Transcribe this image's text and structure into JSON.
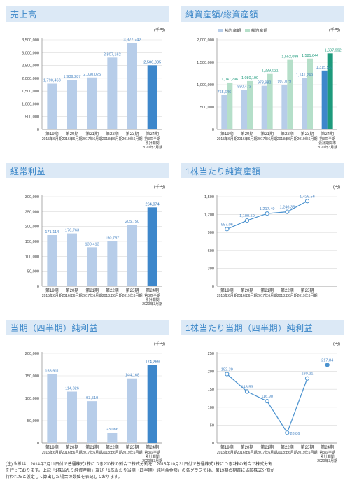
{
  "colors": {
    "bar": "#b7cde9",
    "bar_highlight": "#3d87cb",
    "bar_green": "#b5dfc9",
    "bar_green_highlight": "#1e9a7c",
    "line": "#4b92cf",
    "header_bg": "#dce9f6",
    "title": "#3a86c8"
  },
  "charts": [
    {
      "id": "sales",
      "chart_data": {
        "type": "bar",
        "title": "売上高",
        "unit": "(千円)",
        "categories": [
          [
            "第19期",
            "2015年6月期"
          ],
          [
            "第20期",
            "2016年6月期"
          ],
          [
            "第21期",
            "2017年6月期"
          ],
          [
            "第22期",
            "2018年6月期"
          ],
          [
            "第23期",
            "2019年6月期"
          ],
          [
            "第24期",
            "第3四半期",
            "累計期間",
            "2020年3月期"
          ]
        ],
        "values": [
          1790463,
          1939287,
          2030025,
          2807162,
          3377742,
          2506335
        ],
        "value_labels": [
          "1,790,463",
          "1,939,287",
          "2,030,025",
          "2,807,162",
          "3,377,742",
          "2,506,335"
        ],
        "highlight_last": true,
        "yticks": [
          0,
          500000,
          1000000,
          1500000,
          2000000,
          2500000,
          3000000,
          3500000
        ],
        "ytick_labels": [
          "0",
          "500,000",
          "1,000,000",
          "1,500,000",
          "2,000,000",
          "2,500,000",
          "3,000,000",
          "3,500,000"
        ],
        "ylim": [
          0,
          3500000
        ]
      }
    },
    {
      "id": "assets",
      "chart_data": {
        "type": "bar",
        "title": "純資産額/総資産額",
        "unit": "(千円)",
        "categories": [
          [
            "第19期",
            "2015年6月期"
          ],
          [
            "第20期",
            "2016年6月期"
          ],
          [
            "第21期",
            "2017年6月期"
          ],
          [
            "第22期",
            "2018年6月期"
          ],
          [
            "第23期",
            "2019年6月期"
          ],
          [
            "第24期",
            "第3四半期",
            "会計期間末",
            "2020年3月期"
          ]
        ],
        "series": [
          {
            "name": "純資産額",
            "values": [
              765646,
              880473,
              973982,
              997079,
              1141249,
              1315537
            ],
            "value_labels": [
              "765,646",
              "880,473",
              "973,982",
              "997,079",
              "1,141,249",
              "1,315,537"
            ]
          },
          {
            "name": "総資産額",
            "values": [
              1047796,
              1080190,
              1239021,
              1552099,
              1581644,
              1697992
            ],
            "value_labels": [
              "1,047,796",
              "1,080,190",
              "1,239,021",
              "1,552,099",
              "1,581,644",
              "1,697,992"
            ]
          }
        ],
        "legend": "top-left",
        "highlight_last": true,
        "yticks": [
          0,
          500000,
          1000000,
          1500000,
          2000000
        ],
        "ytick_labels": [
          "0",
          "500,000",
          "1,000,000",
          "1,500,000",
          "2,000,000"
        ],
        "ylim": [
          0,
          2000000
        ]
      }
    },
    {
      "id": "ordinary",
      "chart_data": {
        "type": "bar",
        "title": "経常利益",
        "unit": "(千円)",
        "categories": [
          [
            "第19期",
            "2015年6月期"
          ],
          [
            "第20期",
            "2016年6月期"
          ],
          [
            "第21期",
            "2017年6月期"
          ],
          [
            "第22期",
            "2018年6月期"
          ],
          [
            "第23期",
            "2019年6月期"
          ],
          [
            "第24期",
            "第3四半期",
            "累計期間",
            "2020年3月期"
          ]
        ],
        "values": [
          171114,
          176763,
          130413,
          150757,
          205750,
          264074
        ],
        "value_labels": [
          "171,114",
          "176,763",
          "130,413",
          "150,757",
          "205,750",
          "264,074"
        ],
        "highlight_last": true,
        "yticks": [
          0,
          50000,
          100000,
          150000,
          200000,
          250000,
          300000
        ],
        "ytick_labels": [
          "0",
          "50,000",
          "100,000",
          "150,000",
          "200,000",
          "250,000",
          "300,000"
        ],
        "ylim": [
          0,
          300000
        ]
      }
    },
    {
      "id": "bps",
      "chart_data": {
        "type": "line",
        "title": "1株当たり純資産額",
        "unit": "(円)",
        "categories": [
          [
            "第19期",
            "2015年6月期"
          ],
          [
            "第20期",
            "2016年6月期"
          ],
          [
            "第21期",
            "2017年6月期"
          ],
          [
            "第22期",
            "2018年6月期"
          ],
          [
            "第23期",
            "2019年6月期"
          ]
        ],
        "values": [
          957.06,
          1100.59,
          1217.49,
          1246.35,
          1426.56
        ],
        "value_labels": [
          "957.06",
          "1,100.59",
          "1,217.49",
          "1,246.35",
          "1,426.56"
        ],
        "yticks": [
          0,
          300,
          600,
          900,
          1200,
          1500
        ],
        "ytick_labels": [
          "0",
          "300",
          "600",
          "900",
          "1,200",
          "1,500"
        ],
        "ylim": [
          0,
          1500
        ]
      }
    },
    {
      "id": "net",
      "chart_data": {
        "type": "bar",
        "title": "当期（四半期）純利益",
        "unit": "(千円)",
        "categories": [
          [
            "第19期",
            "2015年6月期"
          ],
          [
            "第20期",
            "2016年6月期"
          ],
          [
            "第21期",
            "2017年6月期"
          ],
          [
            "第22期",
            "2018年6月期"
          ],
          [
            "第23期",
            "2019年6月期"
          ],
          [
            "第24期",
            "第3四半期",
            "累計期間",
            "2020年3月期"
          ]
        ],
        "values": [
          153911,
          114826,
          93519,
          23086,
          144168,
          174269
        ],
        "value_labels": [
          "153,911",
          "114,826",
          "93,519",
          "23,086",
          "144,168",
          "174,269"
        ],
        "highlight_last": true,
        "yticks": [
          0,
          50000,
          100000,
          150000,
          200000
        ],
        "ytick_labels": [
          "0",
          "50,000",
          "100,000",
          "150,000",
          "200,000"
        ],
        "ylim": [
          0,
          200000
        ]
      }
    },
    {
      "id": "eps",
      "chart_data": {
        "type": "line",
        "title": "1株当たり当期（四半期）純利益",
        "unit": "(円)",
        "categories": [
          [
            "第19期",
            "2015年6月期"
          ],
          [
            "第20期",
            "2016年6月期"
          ],
          [
            "第21期",
            "2017年6月期"
          ],
          [
            "第22期",
            "2018年6月期"
          ],
          [
            "第23期",
            "2019年6月期"
          ],
          [
            "第24期",
            "第3四半期",
            "累計期間",
            "2020年3月期"
          ]
        ],
        "values": [
          192.39,
          143.53,
          116.9,
          28.86,
          180.21,
          217.84
        ],
        "value_labels": [
          "192.39",
          "143.53",
          "116.90",
          "28.86",
          "180.21",
          "217.84"
        ],
        "last_point_separate": true,
        "yticks": [
          0,
          50,
          100,
          150,
          200,
          250
        ],
        "ytick_labels": [
          "0",
          "50",
          "100",
          "150",
          "200",
          "250"
        ],
        "ylim": [
          0,
          250
        ]
      }
    }
  ],
  "note": {
    "lines": [
      "(注) 当社は、2014年7月11日付で普通株式1株につき200株の割合で株式分割を、2015年10月31日付で普通株式1株につき2株の割合で株式分割",
      "を行っております。上記「1株当たり純資産額」及び「1株当たり当期（四半期）純利益金額」の各グラフでは、第19期の期首に当該株式分割が",
      "行われたと仮定して算出した場合の数値を表記しております。"
    ]
  }
}
